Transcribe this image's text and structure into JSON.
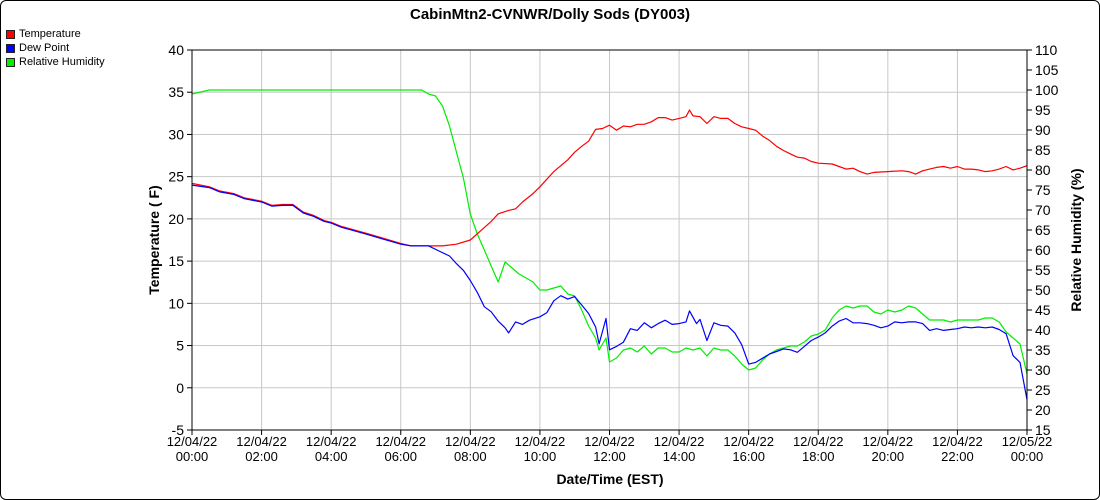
{
  "chart_data": {
    "type": "line",
    "title": "CabinMtn2-CVNWR/Dolly Sods (DY003)",
    "xlabel": "Date/Time (EST)",
    "ylabel": "Temperature ( F)",
    "y2label": "Relative Humidity (%)",
    "ylim": [
      -5,
      40
    ],
    "y2lim": [
      15,
      110
    ],
    "yticks": [
      -5,
      0,
      5,
      10,
      15,
      20,
      25,
      30,
      35,
      40
    ],
    "y2ticks": [
      15,
      20,
      25,
      30,
      35,
      40,
      45,
      50,
      55,
      60,
      65,
      70,
      75,
      80,
      85,
      90,
      95,
      100,
      105,
      110
    ],
    "xlim": [
      0,
      24
    ],
    "xticks": [
      {
        "h": 0,
        "date": "12/04/22",
        "time": "00:00"
      },
      {
        "h": 2,
        "date": "12/04/22",
        "time": "02:00"
      },
      {
        "h": 4,
        "date": "12/04/22",
        "time": "04:00"
      },
      {
        "h": 6,
        "date": "12/04/22",
        "time": "06:00"
      },
      {
        "h": 8,
        "date": "12/04/22",
        "time": "08:00"
      },
      {
        "h": 10,
        "date": "12/04/22",
        "time": "10:00"
      },
      {
        "h": 12,
        "date": "12/04/22",
        "time": "12:00"
      },
      {
        "h": 14,
        "date": "12/04/22",
        "time": "14:00"
      },
      {
        "h": 16,
        "date": "12/04/22",
        "time": "16:00"
      },
      {
        "h": 18,
        "date": "12/04/22",
        "time": "18:00"
      },
      {
        "h": 20,
        "date": "12/04/22",
        "time": "20:00"
      },
      {
        "h": 22,
        "date": "12/04/22",
        "time": "22:00"
      },
      {
        "h": 24,
        "date": "12/05/22",
        "time": "00:00"
      }
    ],
    "grid": true,
    "legend_position": "top-left",
    "series": [
      {
        "name": "Temperature",
        "color": "#ff0000",
        "axis": "left",
        "points": [
          [
            0,
            24.2
          ],
          [
            0.5,
            23.8
          ],
          [
            0.8,
            23.3
          ],
          [
            1.2,
            23
          ],
          [
            1.5,
            22.5
          ],
          [
            2,
            22.1
          ],
          [
            2.3,
            21.6
          ],
          [
            2.6,
            21.7
          ],
          [
            2.9,
            21.7
          ],
          [
            3.2,
            20.8
          ],
          [
            3.5,
            20.4
          ],
          [
            3.8,
            19.8
          ],
          [
            4,
            19.6
          ],
          [
            4.3,
            19.1
          ],
          [
            5,
            18.3
          ],
          [
            5.5,
            17.7
          ],
          [
            6,
            17.1
          ],
          [
            6.3,
            16.8
          ],
          [
            6.8,
            16.8
          ],
          [
            7.2,
            16.8
          ],
          [
            7.6,
            17
          ],
          [
            8,
            17.5
          ],
          [
            8.3,
            18.6
          ],
          [
            8.6,
            19.7
          ],
          [
            8.8,
            20.6
          ],
          [
            9.1,
            21
          ],
          [
            9.3,
            21.2
          ],
          [
            9.5,
            22
          ],
          [
            9.8,
            23
          ],
          [
            10,
            23.8
          ],
          [
            10.2,
            24.7
          ],
          [
            10.4,
            25.6
          ],
          [
            10.6,
            26.3
          ],
          [
            10.8,
            27
          ],
          [
            11,
            27.9
          ],
          [
            11.2,
            28.6
          ],
          [
            11.4,
            29.2
          ],
          [
            11.6,
            30.6
          ],
          [
            11.8,
            30.7
          ],
          [
            12,
            31.1
          ],
          [
            12.2,
            30.5
          ],
          [
            12.4,
            31
          ],
          [
            12.6,
            30.9
          ],
          [
            12.8,
            31.2
          ],
          [
            13,
            31.2
          ],
          [
            13.2,
            31.5
          ],
          [
            13.4,
            32
          ],
          [
            13.6,
            32
          ],
          [
            13.8,
            31.7
          ],
          [
            14,
            31.9
          ],
          [
            14.2,
            32.1
          ],
          [
            14.3,
            32.9
          ],
          [
            14.4,
            32.2
          ],
          [
            14.6,
            32.1
          ],
          [
            14.8,
            31.3
          ],
          [
            15,
            32.1
          ],
          [
            15.2,
            31.9
          ],
          [
            15.4,
            31.9
          ],
          [
            15.6,
            31.3
          ],
          [
            15.8,
            30.9
          ],
          [
            16,
            30.7
          ],
          [
            16.2,
            30.5
          ],
          [
            16.4,
            29.8
          ],
          [
            16.6,
            29.3
          ],
          [
            16.8,
            28.6
          ],
          [
            17,
            28.1
          ],
          [
            17.2,
            27.7
          ],
          [
            17.4,
            27.3
          ],
          [
            17.6,
            27.2
          ],
          [
            17.8,
            26.8
          ],
          [
            18,
            26.6
          ],
          [
            18.4,
            26.5
          ],
          [
            18.6,
            26.2
          ],
          [
            18.8,
            25.9
          ],
          [
            19,
            26
          ],
          [
            19.2,
            25.6
          ],
          [
            19.4,
            25.3
          ],
          [
            19.6,
            25.5
          ],
          [
            20,
            25.6
          ],
          [
            20.4,
            25.7
          ],
          [
            20.6,
            25.6
          ],
          [
            20.8,
            25.3
          ],
          [
            21,
            25.7
          ],
          [
            21.2,
            25.9
          ],
          [
            21.4,
            26.1
          ],
          [
            21.6,
            26.2
          ],
          [
            21.8,
            26
          ],
          [
            22,
            26.2
          ],
          [
            22.2,
            25.9
          ],
          [
            22.4,
            25.9
          ],
          [
            22.6,
            25.8
          ],
          [
            22.8,
            25.6
          ],
          [
            23,
            25.7
          ],
          [
            23.2,
            25.9
          ],
          [
            23.4,
            26.2
          ],
          [
            23.6,
            25.8
          ],
          [
            23.8,
            26
          ],
          [
            24,
            26.3
          ]
        ]
      },
      {
        "name": "Dew Point",
        "color": "#0000ff",
        "axis": "left",
        "points": [
          [
            0,
            24
          ],
          [
            0.5,
            23.7
          ],
          [
            0.8,
            23.2
          ],
          [
            1.2,
            22.9
          ],
          [
            1.5,
            22.4
          ],
          [
            2,
            22
          ],
          [
            2.3,
            21.5
          ],
          [
            2.6,
            21.6
          ],
          [
            2.9,
            21.6
          ],
          [
            3.2,
            20.7
          ],
          [
            3.5,
            20.3
          ],
          [
            3.8,
            19.7
          ],
          [
            4,
            19.5
          ],
          [
            4.3,
            19
          ],
          [
            5,
            18.2
          ],
          [
            5.5,
            17.6
          ],
          [
            6,
            17
          ],
          [
            6.3,
            16.8
          ],
          [
            6.8,
            16.8
          ],
          [
            7.1,
            16.2
          ],
          [
            7.4,
            15.6
          ],
          [
            7.6,
            14.7
          ],
          [
            7.8,
            13.9
          ],
          [
            8,
            12.7
          ],
          [
            8.2,
            11.3
          ],
          [
            8.4,
            9.6
          ],
          [
            8.6,
            9
          ],
          [
            8.8,
            7.9
          ],
          [
            9,
            7.1
          ],
          [
            9.1,
            6.5
          ],
          [
            9.3,
            7.8
          ],
          [
            9.5,
            7.5
          ],
          [
            9.7,
            8
          ],
          [
            10,
            8.4
          ],
          [
            10.2,
            8.9
          ],
          [
            10.4,
            10.3
          ],
          [
            10.6,
            10.9
          ],
          [
            10.8,
            10.5
          ],
          [
            11,
            10.8
          ],
          [
            11.2,
            9.8
          ],
          [
            11.4,
            8.8
          ],
          [
            11.5,
            8
          ],
          [
            11.6,
            7.2
          ],
          [
            11.7,
            5.2
          ],
          [
            11.9,
            8.2
          ],
          [
            12,
            4.5
          ],
          [
            12.2,
            4.9
          ],
          [
            12.4,
            5.4
          ],
          [
            12.6,
            7
          ],
          [
            12.8,
            6.8
          ],
          [
            13,
            7.7
          ],
          [
            13.2,
            7.1
          ],
          [
            13.4,
            7.6
          ],
          [
            13.6,
            8
          ],
          [
            13.8,
            7.5
          ],
          [
            14,
            7.6
          ],
          [
            14.2,
            7.8
          ],
          [
            14.3,
            9.1
          ],
          [
            14.5,
            7.6
          ],
          [
            14.6,
            8.1
          ],
          [
            14.8,
            5.6
          ],
          [
            15,
            7.7
          ],
          [
            15.2,
            7.4
          ],
          [
            15.4,
            7.3
          ],
          [
            15.6,
            6.5
          ],
          [
            15.8,
            5.1
          ],
          [
            16,
            2.8
          ],
          [
            16.2,
            3
          ],
          [
            16.4,
            3.5
          ],
          [
            16.6,
            4
          ],
          [
            16.8,
            4.3
          ],
          [
            17,
            4.6
          ],
          [
            17.2,
            4.5
          ],
          [
            17.4,
            4.2
          ],
          [
            17.6,
            4.9
          ],
          [
            17.8,
            5.6
          ],
          [
            18,
            6
          ],
          [
            18.2,
            6.5
          ],
          [
            18.4,
            7.3
          ],
          [
            18.6,
            7.9
          ],
          [
            18.8,
            8.2
          ],
          [
            19,
            7.7
          ],
          [
            19.2,
            7.7
          ],
          [
            19.4,
            7.6
          ],
          [
            19.6,
            7.4
          ],
          [
            19.8,
            7.1
          ],
          [
            20,
            7.3
          ],
          [
            20.2,
            7.8
          ],
          [
            20.4,
            7.7
          ],
          [
            20.6,
            7.8
          ],
          [
            20.8,
            7.8
          ],
          [
            21,
            7.6
          ],
          [
            21.2,
            6.8
          ],
          [
            21.4,
            7
          ],
          [
            21.6,
            6.8
          ],
          [
            21.8,
            6.9
          ],
          [
            22,
            7
          ],
          [
            22.2,
            7.2
          ],
          [
            22.4,
            7.1
          ],
          [
            22.6,
            7.2
          ],
          [
            22.8,
            7.1
          ],
          [
            23,
            7.2
          ],
          [
            23.2,
            6.9
          ],
          [
            23.4,
            6.4
          ],
          [
            23.6,
            3.8
          ],
          [
            23.8,
            3
          ],
          [
            24,
            -1.4
          ]
        ]
      },
      {
        "name": "Relative Humidity",
        "color": "#00ee00",
        "axis": "right",
        "points": [
          [
            0,
            99
          ],
          [
            0.5,
            100
          ],
          [
            1,
            100
          ],
          [
            2,
            100
          ],
          [
            3,
            100
          ],
          [
            4,
            100
          ],
          [
            5,
            100
          ],
          [
            6,
            100
          ],
          [
            6.6,
            100
          ],
          [
            6.8,
            99
          ],
          [
            7,
            98.5
          ],
          [
            7.2,
            96
          ],
          [
            7.4,
            91
          ],
          [
            7.6,
            84.5
          ],
          [
            7.8,
            78
          ],
          [
            8,
            69
          ],
          [
            8.2,
            64
          ],
          [
            8.4,
            60
          ],
          [
            8.6,
            56
          ],
          [
            8.8,
            52
          ],
          [
            9,
            57
          ],
          [
            9.2,
            55.5
          ],
          [
            9.4,
            54
          ],
          [
            9.6,
            53
          ],
          [
            9.8,
            52
          ],
          [
            10,
            50
          ],
          [
            10.2,
            50
          ],
          [
            10.4,
            50.5
          ],
          [
            10.6,
            51
          ],
          [
            10.8,
            49
          ],
          [
            11,
            48.5
          ],
          [
            11.2,
            45
          ],
          [
            11.4,
            41
          ],
          [
            11.6,
            38
          ],
          [
            11.7,
            35
          ],
          [
            11.9,
            38
          ],
          [
            12,
            32
          ],
          [
            12.2,
            33
          ],
          [
            12.4,
            35
          ],
          [
            12.6,
            35.5
          ],
          [
            12.8,
            34.5
          ],
          [
            13,
            36
          ],
          [
            13.2,
            34
          ],
          [
            13.4,
            35.5
          ],
          [
            13.6,
            35.5
          ],
          [
            13.8,
            34.5
          ],
          [
            14,
            34.5
          ],
          [
            14.2,
            35.5
          ],
          [
            14.4,
            35
          ],
          [
            14.6,
            35.5
          ],
          [
            14.8,
            33.5
          ],
          [
            15,
            35.5
          ],
          [
            15.2,
            35
          ],
          [
            15.4,
            35
          ],
          [
            15.6,
            33.5
          ],
          [
            15.8,
            31.5
          ],
          [
            16,
            30
          ],
          [
            16.2,
            30.5
          ],
          [
            16.4,
            32.5
          ],
          [
            16.6,
            34
          ],
          [
            16.8,
            35
          ],
          [
            17,
            35.5
          ],
          [
            17.2,
            36
          ],
          [
            17.4,
            36
          ],
          [
            17.6,
            37
          ],
          [
            17.8,
            38.5
          ],
          [
            18,
            39
          ],
          [
            18.2,
            40
          ],
          [
            18.4,
            43
          ],
          [
            18.6,
            45
          ],
          [
            18.8,
            46
          ],
          [
            19,
            45.5
          ],
          [
            19.2,
            46
          ],
          [
            19.4,
            46
          ],
          [
            19.6,
            44.5
          ],
          [
            19.8,
            44
          ],
          [
            20,
            45
          ],
          [
            20.2,
            44.5
          ],
          [
            20.4,
            45
          ],
          [
            20.6,
            46
          ],
          [
            20.8,
            45.5
          ],
          [
            21,
            44
          ],
          [
            21.2,
            42.5
          ],
          [
            21.4,
            42.5
          ],
          [
            21.6,
            42.5
          ],
          [
            21.8,
            42
          ],
          [
            22,
            42.5
          ],
          [
            22.2,
            42.5
          ],
          [
            22.4,
            42.5
          ],
          [
            22.6,
            42.5
          ],
          [
            22.8,
            43
          ],
          [
            23,
            43
          ],
          [
            23.2,
            42
          ],
          [
            23.4,
            39.5
          ],
          [
            23.6,
            38
          ],
          [
            23.8,
            36.5
          ],
          [
            24,
            29
          ]
        ]
      }
    ]
  }
}
